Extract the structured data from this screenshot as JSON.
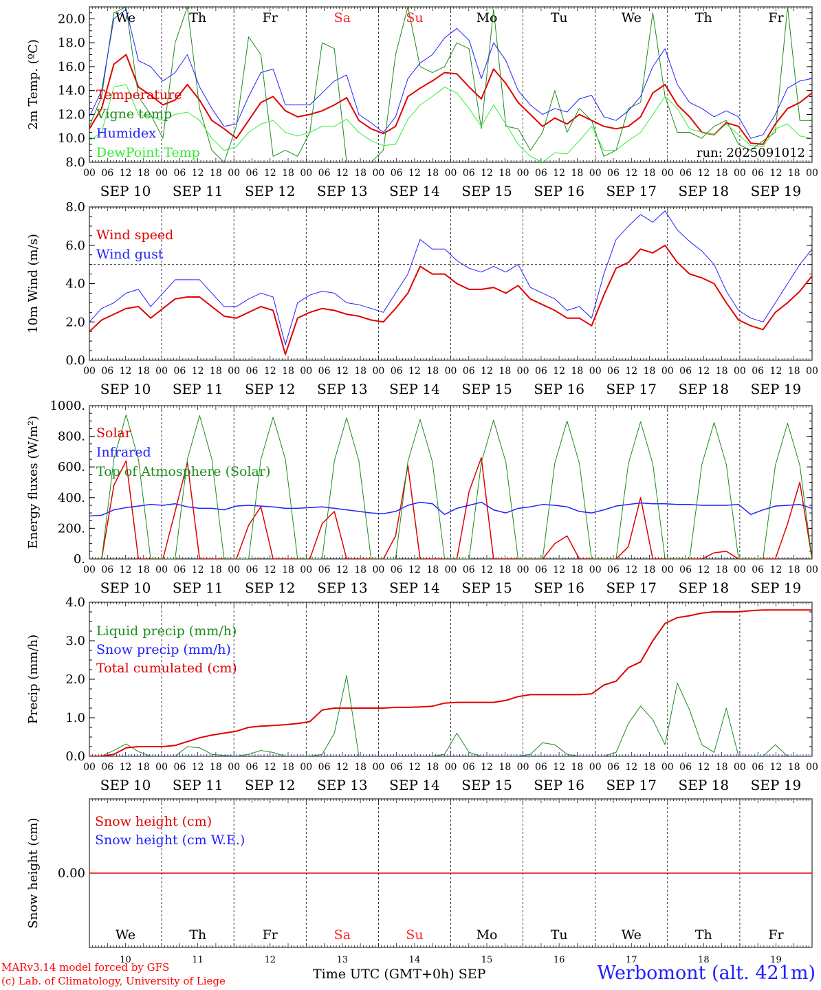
{
  "days": {
    "weekday_labels": [
      "We",
      "Th",
      "Fr",
      "Sa",
      "Su",
      "Mo",
      "Tu",
      "We",
      "Th",
      "Fr"
    ],
    "weekend_color": "#ff2020",
    "weekday_color": "#000000",
    "weekend_index": [
      3,
      4
    ],
    "date_labels": [
      "SEP 10",
      "SEP 11",
      "SEP 12",
      "SEP 13",
      "SEP 14",
      "SEP 15",
      "SEP 16",
      "SEP 17",
      "SEP 18",
      "SEP 19"
    ],
    "day_numbers": [
      "10",
      "11",
      "12",
      "13",
      "14",
      "15",
      "16",
      "17",
      "18",
      "19"
    ],
    "hour_ticks": [
      "00",
      "06",
      "12",
      "18"
    ],
    "final_tick": "00"
  },
  "footer": {
    "model_line": "MARv3.14 model forced by GFS",
    "credit_line": "(c) Lab. of Climatology, University of Liege",
    "axis_label": "Time UTC (GMT+0h)",
    "month": "SEP",
    "station": "Werbomont (alt. 421m)"
  },
  "chart_data": [
    {
      "type": "line",
      "id": "temperature",
      "ylabel": "2m Temp. (ºC)",
      "ylim": [
        8.0,
        21.0
      ],
      "yticks": [
        8.0,
        10.0,
        12.0,
        14.0,
        16.0,
        18.0,
        20.0
      ],
      "ytick_labels": [
        "8.0",
        "10.0",
        "12.0",
        "14.0",
        "16.0",
        "18.0",
        "20.0"
      ],
      "annotation": "run: 2025091012",
      "x_hours_step": 6,
      "series": [
        {
          "name": "Temperature",
          "color": "#e00000",
          "width": 2,
          "values": [
            10.8,
            12.5,
            16.2,
            17.0,
            14.3,
            13.6,
            12.8,
            13.2,
            14.5,
            13.2,
            11.5,
            10.8,
            10.0,
            11.5,
            13.0,
            13.5,
            12.3,
            11.8,
            12.0,
            12.3,
            12.8,
            13.4,
            11.5,
            10.8,
            10.4,
            11.0,
            13.5,
            14.2,
            14.8,
            15.5,
            15.4,
            14.3,
            13.3,
            15.8,
            14.6,
            13.0,
            12.0,
            11.0,
            11.7,
            11.2,
            12.0,
            11.5,
            11.0,
            10.8,
            11.0,
            11.8,
            13.8,
            14.5,
            12.8,
            11.8,
            10.5,
            10.3,
            11.3,
            11.0,
            9.6,
            9.5,
            11.2,
            12.5,
            13.0,
            13.8
          ]
        },
        {
          "name": "Vigne temp",
          "color": "#1a8c1a",
          "width": 1,
          "values": [
            11.0,
            13.5,
            20.5,
            21.0,
            13.5,
            12.0,
            10.0,
            18.0,
            21.0,
            12.5,
            9.0,
            8.0,
            11.0,
            18.5,
            17.0,
            8.5,
            9.0,
            8.5,
            10.5,
            18.0,
            17.5,
            8.0,
            7.5,
            8.0,
            9.0,
            17.0,
            21.0,
            16.0,
            15.5,
            16.0,
            18.0,
            17.5,
            10.8,
            20.8,
            11.0,
            10.8,
            9.0,
            10.5,
            14.0,
            10.5,
            12.5,
            11.5,
            8.5,
            9.0,
            12.5,
            13.0,
            20.5,
            13.5,
            10.5,
            10.5,
            10.0,
            11.0,
            11.5,
            9.5,
            9.0,
            9.8,
            10.5,
            21.0,
            11.5,
            11.5
          ]
        },
        {
          "name": "Humidex",
          "color": "#2020ff",
          "width": 1,
          "values": [
            11.8,
            14.0,
            20.0,
            20.8,
            16.5,
            16.0,
            14.8,
            15.5,
            17.0,
            14.3,
            12.5,
            11.0,
            11.2,
            13.5,
            15.5,
            15.8,
            12.8,
            12.8,
            12.8,
            13.8,
            14.8,
            15.3,
            12.0,
            11.3,
            10.5,
            11.8,
            15.0,
            16.3,
            17.0,
            18.4,
            19.2,
            18.2,
            15.0,
            18.0,
            16.5,
            14.0,
            12.8,
            12.0,
            12.5,
            12.2,
            13.3,
            13.6,
            11.8,
            11.5,
            12.3,
            13.5,
            16.0,
            17.5,
            14.5,
            13.0,
            12.5,
            11.8,
            12.3,
            11.8,
            10.0,
            10.3,
            12.0,
            14.2,
            14.8,
            15.0
          ]
        },
        {
          "name": "DewPoint Temp",
          "color": "#33ee33",
          "width": 1,
          "values": [
            9.8,
            10.5,
            14.3,
            14.5,
            12.0,
            11.8,
            11.5,
            12.0,
            12.2,
            11.5,
            10.0,
            9.0,
            9.3,
            10.5,
            11.2,
            11.5,
            10.5,
            10.2,
            10.5,
            11.0,
            11.0,
            11.6,
            10.5,
            9.8,
            9.4,
            9.5,
            11.6,
            12.8,
            13.5,
            14.3,
            13.8,
            12.5,
            11.0,
            12.8,
            11.2,
            9.5,
            8.5,
            8.0,
            8.8,
            8.7,
            9.8,
            11.0,
            9.0,
            9.0,
            9.8,
            10.5,
            12.0,
            13.5,
            12.5,
            10.8,
            10.5,
            10.3,
            11.2,
            10.3,
            9.4,
            9.3,
            10.8,
            11.2,
            10.2,
            10.0
          ]
        }
      ]
    },
    {
      "type": "line",
      "id": "wind",
      "ylabel": "10m Wind (m/s)",
      "ylim": [
        0.0,
        8.0
      ],
      "yticks": [
        0.0,
        2.0,
        4.0,
        6.0,
        8.0
      ],
      "ytick_labels": [
        "0.0",
        "2.0",
        "4.0",
        "6.0",
        "8.0"
      ],
      "reference_line": 5.0,
      "x_hours_step": 6,
      "series": [
        {
          "name": "Wind speed",
          "color": "#e00000",
          "width": 2,
          "values": [
            1.5,
            2.1,
            2.4,
            2.7,
            2.8,
            2.2,
            2.7,
            3.2,
            3.3,
            3.3,
            2.8,
            2.3,
            2.2,
            2.5,
            2.8,
            2.6,
            0.3,
            2.2,
            2.5,
            2.7,
            2.6,
            2.4,
            2.3,
            2.1,
            2.0,
            2.7,
            3.5,
            4.9,
            4.5,
            4.5,
            4.0,
            3.7,
            3.7,
            3.8,
            3.5,
            3.9,
            3.2,
            2.9,
            2.6,
            2.2,
            2.2,
            1.8,
            3.4,
            4.8,
            5.1,
            5.8,
            5.6,
            6.0,
            5.1,
            4.5,
            4.3,
            4.0,
            3.0,
            2.1,
            1.8,
            1.6,
            2.5,
            3.0,
            3.6,
            4.4
          ]
        },
        {
          "name": "Wind gust",
          "color": "#2020ff",
          "width": 1,
          "values": [
            2.0,
            2.7,
            3.0,
            3.5,
            3.7,
            2.8,
            3.5,
            4.2,
            4.2,
            4.2,
            3.5,
            2.8,
            2.8,
            3.2,
            3.5,
            3.3,
            0.8,
            3.0,
            3.4,
            3.6,
            3.5,
            3.0,
            2.9,
            2.7,
            2.5,
            3.5,
            4.5,
            6.3,
            5.8,
            5.8,
            5.2,
            4.8,
            4.6,
            4.9,
            4.6,
            5.0,
            3.8,
            3.5,
            3.2,
            2.6,
            2.8,
            2.2,
            4.5,
            6.3,
            7.0,
            7.6,
            7.2,
            7.8,
            6.8,
            6.2,
            5.7,
            5.0,
            3.6,
            2.6,
            2.2,
            2.0,
            3.0,
            4.0,
            5.0,
            5.8
          ]
        }
      ]
    },
    {
      "type": "line",
      "id": "energy",
      "ylabel": "Energy fluxes (W/m²)",
      "ylim": [
        0,
        1000
      ],
      "yticks": [
        0,
        200,
        400,
        600,
        800,
        1000
      ],
      "ytick_labels": [
        "0.",
        "200.",
        "400.",
        "600.",
        "800.",
        "1000."
      ],
      "x_hours_step": 6,
      "series": [
        {
          "name": "Solar",
          "color": "#e00000",
          "width": 1.5,
          "values": [
            0,
            0,
            480,
            640,
            0,
            0,
            0,
            310,
            630,
            0,
            0,
            0,
            0,
            220,
            340,
            0,
            0,
            0,
            0,
            230,
            310,
            0,
            0,
            0,
            0,
            150,
            610,
            0,
            0,
            0,
            0,
            440,
            660,
            0,
            0,
            0,
            0,
            0,
            100,
            150,
            0,
            0,
            0,
            0,
            80,
            400,
            0,
            0,
            0,
            0,
            0,
            40,
            50,
            0,
            0,
            0,
            0,
            230,
            500,
            0
          ]
        },
        {
          "name": "Infrared",
          "color": "#2020ff",
          "width": 1.5,
          "values": [
            280,
            285,
            320,
            335,
            345,
            355,
            350,
            360,
            340,
            330,
            330,
            320,
            345,
            350,
            345,
            340,
            330,
            330,
            335,
            340,
            330,
            320,
            310,
            300,
            295,
            310,
            350,
            370,
            360,
            290,
            330,
            350,
            370,
            320,
            300,
            330,
            340,
            355,
            350,
            340,
            310,
            300,
            320,
            345,
            355,
            365,
            360,
            360,
            355,
            355,
            350,
            350,
            350,
            355,
            290,
            320,
            345,
            350,
            355,
            330
          ]
        },
        {
          "name": "Top of Atmosphere (Solar)",
          "color": "#1a8c1a",
          "width": 1,
          "values": [
            0,
            0,
            650,
            940,
            650,
            0,
            0,
            0,
            650,
            935,
            650,
            0,
            0,
            0,
            650,
            925,
            650,
            0,
            0,
            0,
            640,
            920,
            640,
            0,
            0,
            0,
            635,
            910,
            635,
            0,
            0,
            0,
            630,
            905,
            630,
            0,
            0,
            0,
            625,
            900,
            625,
            0,
            0,
            0,
            620,
            895,
            620,
            0,
            0,
            0,
            615,
            890,
            615,
            0,
            0,
            0,
            610,
            885,
            610,
            0
          ]
        }
      ]
    },
    {
      "type": "line",
      "id": "precip",
      "ylabel": "Precip (mm/h)",
      "ylim": [
        0.0,
        4.0
      ],
      "yticks": [
        0.0,
        1.0,
        2.0,
        3.0,
        4.0
      ],
      "ytick_labels": [
        "0.0",
        "1.0",
        "2.0",
        "3.0",
        "4.0"
      ],
      "x_hours_step": 6,
      "series": [
        {
          "name": "Liquid precip (mm/h)",
          "color": "#1a8c1a",
          "width": 1,
          "values": [
            0,
            0,
            0.15,
            0.32,
            0.12,
            0,
            0,
            0,
            0.25,
            0.22,
            0.05,
            0.02,
            0,
            0.05,
            0.15,
            0.1,
            0,
            0,
            0,
            0.05,
            0.6,
            2.1,
            0,
            0,
            0,
            0,
            0,
            0,
            0,
            0.05,
            0.6,
            0.1,
            0,
            0,
            0,
            0,
            0.05,
            0.35,
            0.3,
            0.05,
            0,
            0,
            0,
            0.1,
            0.85,
            1.3,
            0.95,
            0.3,
            1.9,
            1.2,
            0.3,
            0.1,
            1.25,
            0,
            0,
            0,
            0.3,
            0,
            0,
            0
          ]
        },
        {
          "name": "Snow precip (mm/h)",
          "color": "#2020ff",
          "width": 1,
          "values": [
            0,
            0,
            0,
            0,
            0,
            0,
            0,
            0,
            0,
            0,
            0,
            0,
            0,
            0,
            0,
            0,
            0,
            0,
            0,
            0,
            0,
            0,
            0,
            0,
            0,
            0,
            0,
            0,
            0,
            0,
            0,
            0,
            0,
            0,
            0,
            0,
            0,
            0,
            0,
            0,
            0,
            0,
            0,
            0,
            0,
            0,
            0,
            0,
            0,
            0,
            0,
            0,
            0,
            0,
            0,
            0,
            0,
            0,
            0,
            0
          ]
        },
        {
          "name": "Total cumulated (cm)",
          "color": "#e00000",
          "width": 2,
          "values": [
            0,
            0,
            0.05,
            0.22,
            0.25,
            0.25,
            0.25,
            0.28,
            0.38,
            0.48,
            0.55,
            0.6,
            0.65,
            0.75,
            0.78,
            0.8,
            0.82,
            0.85,
            0.9,
            1.2,
            1.25,
            1.25,
            1.25,
            1.25,
            1.25,
            1.27,
            1.27,
            1.28,
            1.3,
            1.38,
            1.4,
            1.4,
            1.4,
            1.4,
            1.45,
            1.55,
            1.6,
            1.6,
            1.6,
            1.6,
            1.6,
            1.62,
            1.85,
            1.95,
            2.3,
            2.45,
            3.0,
            3.45,
            3.6,
            3.65,
            3.72,
            3.75,
            3.75,
            3.75,
            3.78,
            3.8,
            3.8,
            3.8,
            3.8,
            3.8
          ]
        }
      ]
    },
    {
      "type": "line",
      "id": "snow",
      "ylabel": "Snow height (cm)",
      "ylim": [
        -1.0,
        1.0
      ],
      "yticks": [
        0.0
      ],
      "ytick_labels": [
        "0.00"
      ],
      "x_hours_step": 6,
      "series": [
        {
          "name": "Snow height (cm)",
          "color": "#e00000",
          "width": 1.5,
          "values": [
            0,
            0,
            0,
            0,
            0,
            0,
            0,
            0,
            0,
            0,
            0,
            0,
            0,
            0,
            0,
            0,
            0,
            0,
            0,
            0,
            0,
            0,
            0,
            0,
            0,
            0,
            0,
            0,
            0,
            0,
            0,
            0,
            0,
            0,
            0,
            0,
            0,
            0,
            0,
            0,
            0,
            0,
            0,
            0,
            0,
            0,
            0,
            0,
            0,
            0,
            0,
            0,
            0,
            0,
            0,
            0,
            0,
            0,
            0,
            0
          ]
        },
        {
          "name": "Snow height (cm W.E.)",
          "color": "#2020ff",
          "width": 1,
          "values": []
        }
      ]
    }
  ]
}
